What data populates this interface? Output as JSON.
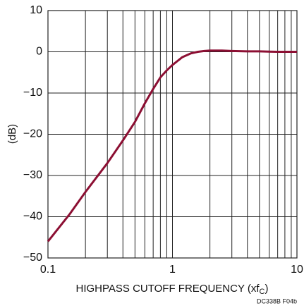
{
  "chart_data": {
    "type": "line",
    "ylabel": "(dB)",
    "xlabel": {
      "text": "HIGHPASS CUTOFF FREQUENCY (xf",
      "subscript": "C",
      "suffix": ")"
    },
    "annotation": "DC338B F04b",
    "xscale": "log",
    "xlim": [
      0.1,
      10
    ],
    "xticks": [
      0.1,
      1,
      10
    ],
    "xminor_ticks": [
      0.2,
      0.3,
      0.4,
      0.5,
      0.6,
      0.7,
      0.8,
      0.9,
      2,
      3,
      4,
      5,
      6,
      7,
      8,
      9
    ],
    "ylim": [
      -50,
      10
    ],
    "yticks": [
      {
        "value": -50,
        "label": "−50"
      },
      {
        "value": -40,
        "label": "−40"
      },
      {
        "value": -30,
        "label": "−30"
      },
      {
        "value": -20,
        "label": "−20"
      },
      {
        "value": -10,
        "label": "−10"
      },
      0,
      10
    ],
    "grid": true,
    "series": [
      {
        "color": "#8c0f33",
        "x": [
          0.1,
          0.15,
          0.2,
          0.3,
          0.4,
          0.5,
          0.6,
          0.7,
          0.8,
          0.9,
          1,
          1.2,
          1.4,
          1.6,
          1.8,
          2,
          2.5,
          3,
          4,
          5,
          7,
          10
        ],
        "values": [
          -46,
          -39.3,
          -34,
          -27,
          -21.5,
          -17,
          -12.5,
          -9,
          -6.2,
          -4.5,
          -3.2,
          -1.3,
          -0.4,
          0,
          0.2,
          0.3,
          0.3,
          0.2,
          0.1,
          0.1,
          0,
          0
        ]
      }
    ]
  }
}
